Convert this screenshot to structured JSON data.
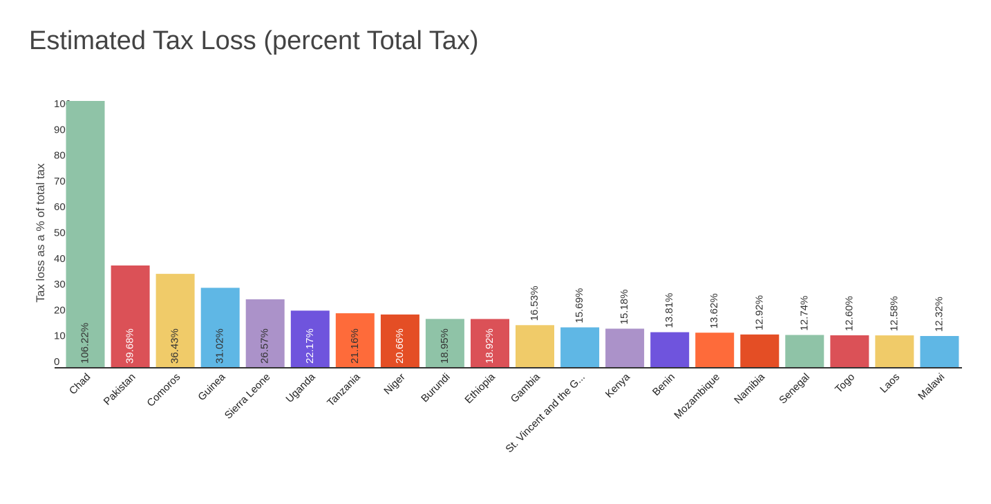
{
  "chart_data": {
    "type": "bar",
    "title": "Estimated Tax Loss (percent Total Tax)",
    "ylabel": "Tax loss as a % of total tax",
    "xlabel": "",
    "ylim": [
      0,
      100
    ],
    "yticks": [
      0,
      10,
      20,
      30,
      40,
      50,
      60,
      70,
      80,
      90,
      100
    ],
    "grid": false,
    "categories": [
      "Chad",
      "Pakistan",
      "Comoros",
      "Guinea",
      "Sierra Leone",
      "Uganda",
      "Tanzania",
      "Niger",
      "Burundi",
      "Ethiopia",
      "Gambia",
      "St. Vincent and the G...",
      "Kenya",
      "Benin",
      "Mozambique",
      "Namibia",
      "Senegal",
      "Togo",
      "Laos",
      "Malawi"
    ],
    "values": [
      106.22,
      39.68,
      36.43,
      31.02,
      26.57,
      22.17,
      21.16,
      20.66,
      18.95,
      18.92,
      16.53,
      15.69,
      15.18,
      13.81,
      13.62,
      12.92,
      12.74,
      12.6,
      12.58,
      12.32
    ],
    "data_labels": [
      "106.22%",
      "39.68%",
      "36.43%",
      "31.02%",
      "26.57%",
      "22.17%",
      "21.16%",
      "20.66%",
      "18.95%",
      "18.92%",
      "16.53%",
      "15.69%",
      "15.18%",
      "13.81%",
      "13.62%",
      "12.92%",
      "12.74%",
      "12.60%",
      "12.58%",
      "12.32%"
    ],
    "colors": [
      "#8fc3a7",
      "#db5157",
      "#f0cb69",
      "#5fb7e5",
      "#ab92c9",
      "#6f54dd",
      "#fe6b3a",
      "#e44e25",
      "#8fc3a7",
      "#db5157",
      "#f0cb69",
      "#5fb7e5",
      "#ab92c9",
      "#6f54dd",
      "#fe6b3a",
      "#e44e25",
      "#8fc3a7",
      "#db5157",
      "#f0cb69",
      "#5fb7e5"
    ],
    "label_colors": {
      "light": "#ffffff",
      "dark": "#333333"
    },
    "axis_color": "#333333"
  }
}
